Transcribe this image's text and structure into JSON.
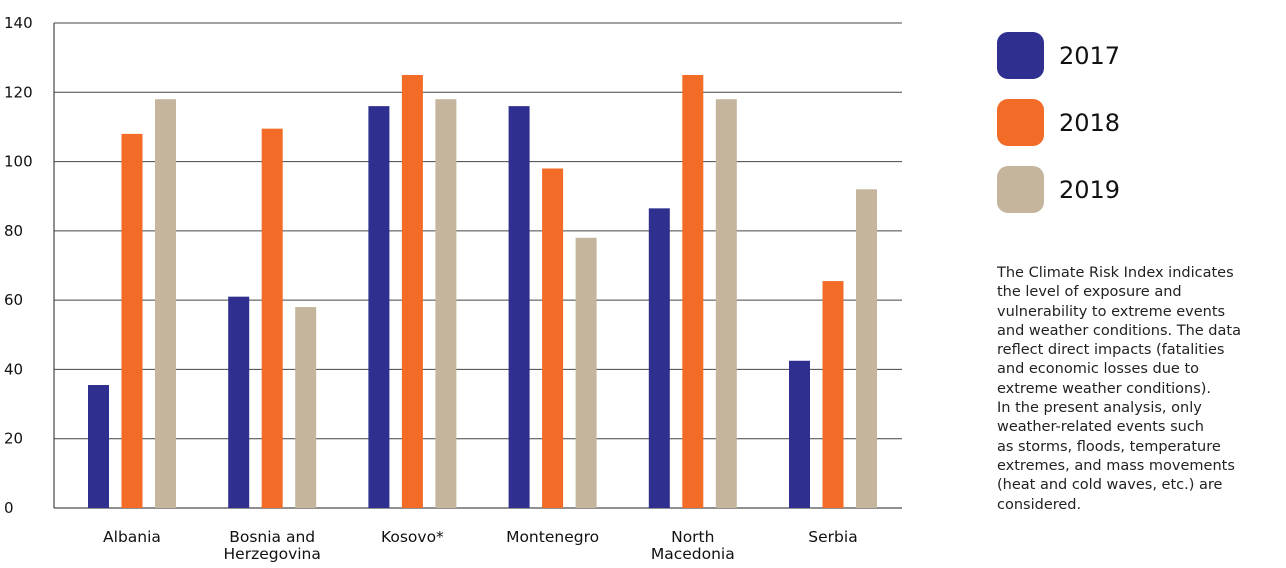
{
  "chart_data": {
    "type": "bar",
    "categories": [
      [
        "Albania"
      ],
      [
        "Bosnia and",
        "Herzegovina"
      ],
      [
        "Kosovo*"
      ],
      [
        "Montenegro"
      ],
      [
        "North",
        "Macedonia"
      ],
      [
        "Serbia"
      ]
    ],
    "series": [
      {
        "name": "2017",
        "color": "#2e2f8f",
        "values": [
          35.5,
          61,
          116,
          116,
          86.5,
          42.5
        ]
      },
      {
        "name": "2018",
        "color": "#f26b27",
        "values": [
          108,
          109.5,
          125,
          98,
          125,
          65.5
        ]
      },
      {
        "name": "2019",
        "color": "#c5b59d",
        "values": [
          118,
          58,
          118,
          78,
          118,
          92
        ]
      }
    ],
    "ylim": [
      0,
      140
    ],
    "yticks": [
      0,
      20,
      40,
      60,
      80,
      100,
      120,
      140
    ],
    "grid": true,
    "legend_position": "right",
    "note": "The Climate Risk Index indicates\nthe level of exposure and\nvulnerability to extreme events\nand weather conditions. The data\nreflect direct impacts (fatalities\nand economic losses due to\nextreme weather conditions).\nIn the present analysis, only\nweather-related events such\nas storms, floods, temperature\nextremes, and mass movements\n(heat and cold waves, etc.) are\nconsidered."
  }
}
